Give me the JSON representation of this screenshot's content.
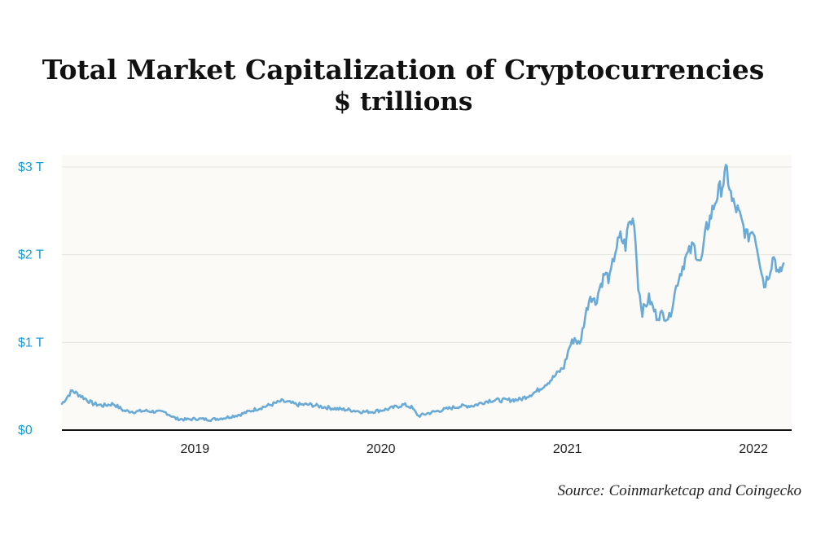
{
  "title": "Total Market Capitalization of Cryptocurrencies",
  "subtitle": "$ trillions",
  "source": "Source: Coinmarketcap and Coingecko",
  "colors": {
    "line": "#6aaad6",
    "ytick": "#1a9bd7",
    "plot_bg": "#fbfaf6",
    "axis": "#111111"
  },
  "chart_data": {
    "type": "line",
    "title": "Total Market Capitalization of Cryptocurrencies",
    "subtitle": "$ trillions",
    "xlabel": "",
    "ylabel": "",
    "ylim": [
      0,
      3
    ],
    "yticks": [
      0,
      1,
      2,
      3
    ],
    "ytick_labels": [
      "$0",
      "$1 T",
      "$2 T",
      "$3 T"
    ],
    "xlim": [
      "2018-04-15",
      "2022-03-01"
    ],
    "xticks": [
      "2019-01-01",
      "2020-01-01",
      "2021-01-01",
      "2022-01-01"
    ],
    "xtick_labels": [
      "2019",
      "2020",
      "2021",
      "2022"
    ],
    "grid": true,
    "series": [
      {
        "x": [
          "2018-04-15",
          "2018-05-05",
          "2018-05-25",
          "2018-06-15",
          "2018-07-05",
          "2018-07-25",
          "2018-08-15",
          "2018-09-05",
          "2018-09-25",
          "2018-10-15",
          "2018-11-05",
          "2018-11-25",
          "2018-12-15",
          "2019-01-05",
          "2019-02-01",
          "2019-03-01",
          "2019-04-01",
          "2019-05-01",
          "2019-05-25",
          "2019-06-20",
          "2019-07-01",
          "2019-07-20",
          "2019-08-15",
          "2019-09-15",
          "2019-10-10",
          "2019-11-01",
          "2019-11-25",
          "2019-12-15",
          "2020-01-15",
          "2020-02-15",
          "2020-03-01",
          "2020-03-15",
          "2020-04-01",
          "2020-05-01",
          "2020-06-01",
          "2020-07-01",
          "2020-08-01",
          "2020-09-01",
          "2020-10-01",
          "2020-11-01",
          "2020-12-01",
          "2020-12-25",
          "2021-01-05",
          "2021-01-15",
          "2021-01-25",
          "2021-02-05",
          "2021-02-15",
          "2021-02-25",
          "2021-03-05",
          "2021-03-15",
          "2021-03-25",
          "2021-04-05",
          "2021-04-15",
          "2021-04-25",
          "2021-05-01",
          "2021-05-12",
          "2021-05-20",
          "2021-05-28",
          "2021-06-10",
          "2021-06-25",
          "2021-07-05",
          "2021-07-20",
          "2021-08-05",
          "2021-08-20",
          "2021-09-05",
          "2021-09-20",
          "2021-10-01",
          "2021-10-10",
          "2021-10-20",
          "2021-11-01",
          "2021-11-10",
          "2021-11-20",
          "2021-12-01",
          "2021-12-10",
          "2021-12-20",
          "2022-01-01",
          "2022-01-10",
          "2022-01-22",
          "2022-02-01",
          "2022-02-10",
          "2022-02-20",
          "2022-03-01"
        ],
        "y": [
          0.3,
          0.45,
          0.38,
          0.3,
          0.28,
          0.3,
          0.22,
          0.21,
          0.22,
          0.21,
          0.2,
          0.13,
          0.12,
          0.13,
          0.12,
          0.14,
          0.18,
          0.24,
          0.28,
          0.33,
          0.32,
          0.29,
          0.29,
          0.26,
          0.24,
          0.23,
          0.21,
          0.21,
          0.24,
          0.29,
          0.26,
          0.16,
          0.19,
          0.23,
          0.27,
          0.28,
          0.34,
          0.34,
          0.35,
          0.44,
          0.58,
          0.72,
          0.95,
          1.05,
          0.97,
          1.3,
          1.55,
          1.45,
          1.62,
          1.78,
          1.72,
          2.05,
          2.2,
          2.1,
          2.35,
          2.4,
          1.65,
          1.35,
          1.5,
          1.3,
          1.32,
          1.28,
          1.7,
          1.95,
          2.1,
          1.9,
          2.3,
          2.45,
          2.65,
          2.8,
          2.95,
          2.6,
          2.5,
          2.35,
          2.2,
          2.3,
          2.05,
          1.65,
          1.8,
          2.0,
          1.75,
          1.9
        ]
      }
    ]
  }
}
